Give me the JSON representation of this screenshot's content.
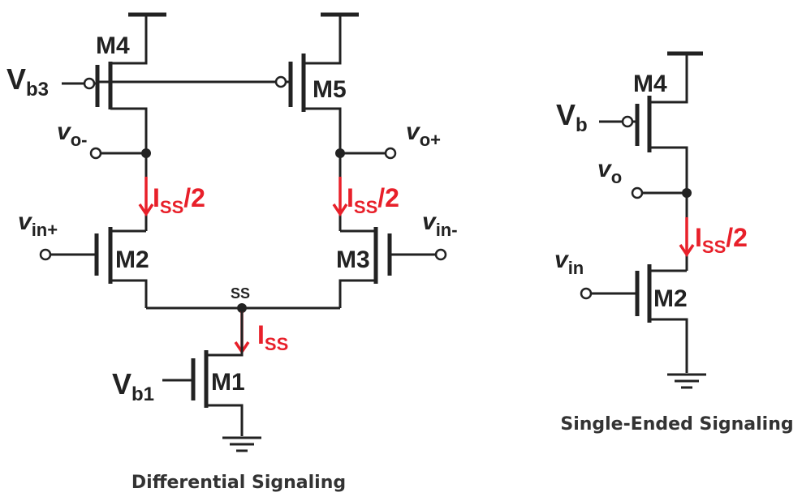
{
  "differential": {
    "caption": "Differential Signaling",
    "transistors": {
      "m1": "M1",
      "m2": "M2",
      "m3": "M3",
      "m4": "M4",
      "m5": "M5"
    },
    "bias_b3": {
      "main": "V",
      "sub": "b3"
    },
    "bias_b1": {
      "main": "V",
      "sub": "b1"
    },
    "out_minus": {
      "main": "v",
      "sub": "o-"
    },
    "out_plus": {
      "main": "v",
      "sub": "o+"
    },
    "in_plus": {
      "main": "v",
      "sub": "in+"
    },
    "in_minus": {
      "main": "v",
      "sub": "in-"
    },
    "node_ss": "SS",
    "current_left": {
      "main": "I",
      "sub": "SS",
      "tail": "/2"
    },
    "current_right": {
      "main": "I",
      "sub": "SS",
      "tail": "/2"
    },
    "current_tail": {
      "main": "I",
      "sub": "SS"
    }
  },
  "single_ended": {
    "caption": "Single-Ended Signaling",
    "transistors": {
      "m4": "M4",
      "m2": "M2"
    },
    "bias": {
      "main": "V",
      "sub": "b"
    },
    "out": {
      "main": "v",
      "sub": "o"
    },
    "in": {
      "main": "v",
      "sub": "in"
    },
    "current": {
      "main": "I",
      "sub": "SS",
      "tail": "/2"
    }
  },
  "colors": {
    "wire": "#222222",
    "current": "#e8202a",
    "caption": "#333333"
  }
}
